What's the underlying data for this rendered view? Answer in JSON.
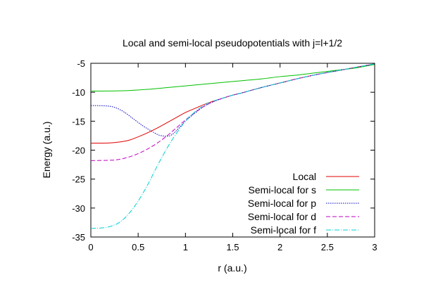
{
  "chart_data": {
    "type": "line",
    "title": "Local and semi-local pseudopotentials with j=l+1/2",
    "xlabel": "r (a.u.)",
    "ylabel": "Energy (a.u.)",
    "xlim": [
      0,
      3
    ],
    "ylim": [
      -35,
      -5
    ],
    "xticks": [
      0,
      0.5,
      1,
      1.5,
      2,
      2.5,
      3
    ],
    "yticks": [
      -35,
      -30,
      -25,
      -20,
      -15,
      -10,
      -5
    ],
    "xtick_labels": [
      "0",
      "0.5",
      "1",
      "1.5",
      "2",
      "2.5",
      "3"
    ],
    "ytick_labels": [
      "-35",
      "-30",
      "-25",
      "-20",
      "-15",
      "-10",
      "-5"
    ],
    "grid": false,
    "legend_position": "bottom-right",
    "series": [
      {
        "name": "Local",
        "color": "#e00000",
        "dash": "solid",
        "points": [
          [
            0,
            -18.8
          ],
          [
            0.2,
            -18.75
          ],
          [
            0.3,
            -18.6
          ],
          [
            0.4,
            -18.3
          ],
          [
            0.5,
            -17.7
          ],
          [
            0.6,
            -17.0
          ],
          [
            0.7,
            -16.2
          ],
          [
            0.8,
            -15.3
          ],
          [
            0.9,
            -14.4
          ],
          [
            1.0,
            -13.5
          ],
          [
            1.1,
            -12.8
          ],
          [
            1.2,
            -12.1
          ],
          [
            1.3,
            -11.5
          ],
          [
            1.4,
            -11.0
          ],
          [
            1.5,
            -10.5
          ],
          [
            1.6,
            -10.1
          ],
          [
            1.8,
            -9.2
          ],
          [
            2.0,
            -8.4
          ],
          [
            2.2,
            -7.6
          ],
          [
            2.4,
            -6.9
          ],
          [
            2.6,
            -6.3
          ],
          [
            2.8,
            -5.7
          ],
          [
            3.0,
            -5.1
          ]
        ]
      },
      {
        "name": "Semi-local for s",
        "color": "#00c000",
        "dash": "solid",
        "points": [
          [
            0,
            -9.8
          ],
          [
            0.2,
            -9.78
          ],
          [
            0.4,
            -9.7
          ],
          [
            0.6,
            -9.5
          ],
          [
            0.8,
            -9.2
          ],
          [
            1.0,
            -8.9
          ],
          [
            1.2,
            -8.6
          ],
          [
            1.4,
            -8.3
          ],
          [
            1.6,
            -8.0
          ],
          [
            1.8,
            -7.7
          ],
          [
            2.0,
            -7.3
          ],
          [
            2.2,
            -7.0
          ],
          [
            2.4,
            -6.6
          ],
          [
            2.6,
            -6.2
          ],
          [
            2.8,
            -5.8
          ],
          [
            3.0,
            -5.2
          ]
        ]
      },
      {
        "name": "Semi-local for p",
        "color": "#0000c0",
        "dash": "dotted",
        "points": [
          [
            0,
            -12.3
          ],
          [
            0.15,
            -12.35
          ],
          [
            0.25,
            -12.6
          ],
          [
            0.35,
            -13.4
          ],
          [
            0.45,
            -14.6
          ],
          [
            0.55,
            -15.8
          ],
          [
            0.65,
            -16.8
          ],
          [
            0.72,
            -17.4
          ],
          [
            0.8,
            -17.6
          ],
          [
            0.85,
            -17.4
          ],
          [
            0.9,
            -16.7
          ],
          [
            1.0,
            -15.0
          ],
          [
            1.1,
            -13.6
          ],
          [
            1.2,
            -12.4
          ],
          [
            1.3,
            -11.6
          ],
          [
            1.4,
            -11.0
          ],
          [
            1.5,
            -10.5
          ],
          [
            1.6,
            -10.1
          ],
          [
            1.8,
            -9.2
          ],
          [
            2.0,
            -8.4
          ],
          [
            2.2,
            -7.6
          ],
          [
            2.4,
            -6.9
          ],
          [
            2.6,
            -6.3
          ],
          [
            2.8,
            -5.7
          ],
          [
            3.0,
            -5.1
          ]
        ]
      },
      {
        "name": "Semi-local for d",
        "color": "#c000c0",
        "dash": "dashed",
        "points": [
          [
            0,
            -21.8
          ],
          [
            0.2,
            -21.75
          ],
          [
            0.3,
            -21.6
          ],
          [
            0.4,
            -21.2
          ],
          [
            0.5,
            -20.6
          ],
          [
            0.6,
            -19.8
          ],
          [
            0.7,
            -18.8
          ],
          [
            0.8,
            -17.6
          ],
          [
            0.9,
            -16.2
          ],
          [
            1.0,
            -14.8
          ],
          [
            1.1,
            -13.5
          ],
          [
            1.2,
            -12.4
          ],
          [
            1.3,
            -11.6
          ],
          [
            1.4,
            -11.0
          ],
          [
            1.5,
            -10.5
          ],
          [
            1.6,
            -10.1
          ],
          [
            1.8,
            -9.2
          ],
          [
            2.0,
            -8.4
          ],
          [
            2.2,
            -7.6
          ],
          [
            2.4,
            -6.9
          ],
          [
            2.6,
            -6.3
          ],
          [
            2.8,
            -5.7
          ],
          [
            3.0,
            -5.1
          ]
        ]
      },
      {
        "name": "Semi-local for f",
        "color": "#00d0d0",
        "dash": "dashdot",
        "points": [
          [
            0,
            -33.5
          ],
          [
            0.1,
            -33.45
          ],
          [
            0.2,
            -33.2
          ],
          [
            0.3,
            -32.5
          ],
          [
            0.4,
            -31.0
          ],
          [
            0.5,
            -28.8
          ],
          [
            0.6,
            -26.0
          ],
          [
            0.7,
            -22.8
          ],
          [
            0.8,
            -19.8
          ],
          [
            0.9,
            -17.2
          ],
          [
            1.0,
            -15.0
          ],
          [
            1.1,
            -13.4
          ],
          [
            1.2,
            -12.2
          ],
          [
            1.3,
            -11.5
          ],
          [
            1.4,
            -11.0
          ],
          [
            1.5,
            -10.5
          ],
          [
            1.6,
            -10.1
          ],
          [
            1.8,
            -9.2
          ],
          [
            2.0,
            -8.4
          ],
          [
            2.2,
            -7.6
          ],
          [
            2.4,
            -6.9
          ],
          [
            2.6,
            -6.3
          ],
          [
            2.8,
            -5.7
          ],
          [
            3.0,
            -5.1
          ]
        ]
      }
    ]
  }
}
